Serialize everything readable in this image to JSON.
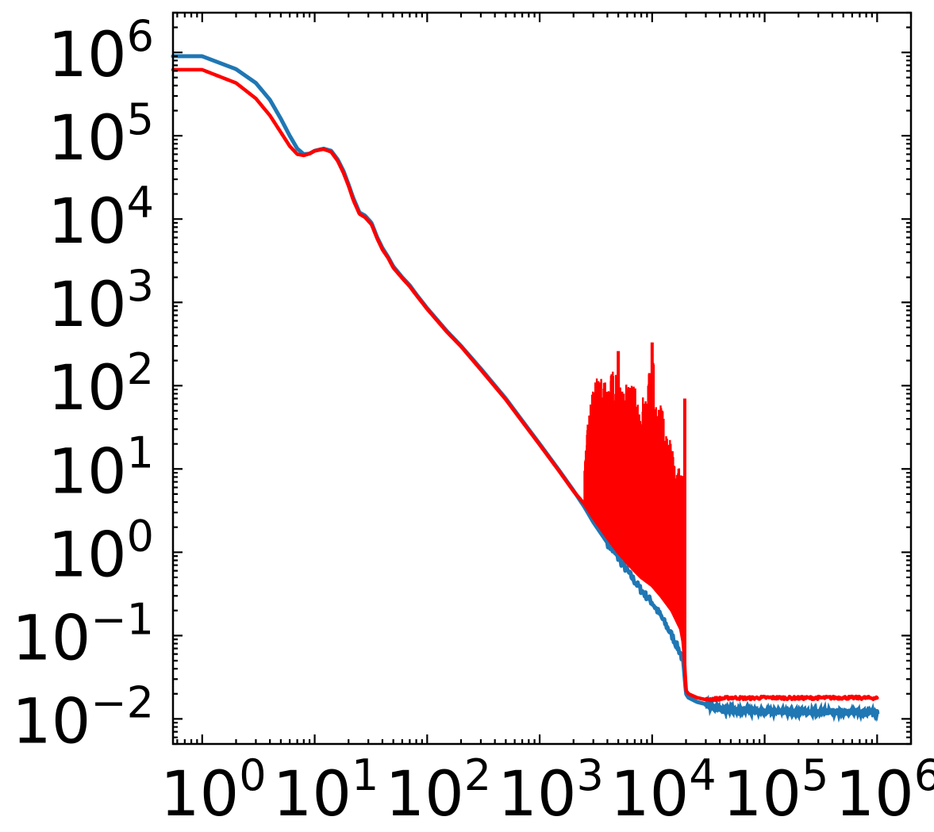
{
  "chart_data": {
    "type": "line",
    "title": "",
    "xlabel": "",
    "ylabel": "",
    "xscale": "log",
    "yscale": "log",
    "xlim": [
      0.55,
      2000000
    ],
    "ylim": [
      0.005,
      3000000
    ],
    "grid": false,
    "legend": "none",
    "x_ticks": [
      {
        "value": 1,
        "base": "10",
        "exp": "0"
      },
      {
        "value": 10,
        "base": "10",
        "exp": "1"
      },
      {
        "value": 100,
        "base": "10",
        "exp": "2"
      },
      {
        "value": 1000,
        "base": "10",
        "exp": "3"
      },
      {
        "value": 10000,
        "base": "10",
        "exp": "4"
      },
      {
        "value": 100000,
        "base": "10",
        "exp": "5"
      },
      {
        "value": 1000000,
        "base": "10",
        "exp": "6"
      }
    ],
    "y_ticks": [
      {
        "value": 0.01,
        "base": "10",
        "exp": "−2"
      },
      {
        "value": 0.1,
        "base": "10",
        "exp": "−1"
      },
      {
        "value": 1,
        "base": "10",
        "exp": "0"
      },
      {
        "value": 10,
        "base": "10",
        "exp": "1"
      },
      {
        "value": 100,
        "base": "10",
        "exp": "2"
      },
      {
        "value": 1000,
        "base": "10",
        "exp": "3"
      },
      {
        "value": 10000,
        "base": "10",
        "exp": "4"
      },
      {
        "value": 100000,
        "base": "10",
        "exp": "5"
      },
      {
        "value": 1000000,
        "base": "10",
        "exp": "6"
      }
    ],
    "series": [
      {
        "color": "#1f77b4",
        "x": [
          0.55,
          1,
          2,
          3,
          4,
          5,
          6,
          7,
          8,
          9,
          10,
          12,
          14,
          16,
          18,
          20,
          22,
          25,
          28,
          32,
          36,
          40,
          45,
          50,
          60,
          70,
          80,
          100,
          150,
          200,
          300,
          500,
          700,
          1000,
          1500,
          2000,
          2500,
          3000,
          4000,
          5000,
          6000,
          7000,
          8000,
          10000,
          12000,
          15000,
          18000,
          19000,
          20000,
          21000,
          25000,
          30000,
          40000,
          50000,
          70000,
          100000,
          200000,
          500000,
          1000000
        ],
        "y": [
          900000,
          900000,
          630000,
          430000,
          270000,
          160000,
          100000,
          70000,
          60000,
          61000,
          66000,
          70000,
          66000,
          52000,
          38000,
          26000,
          18000,
          12000,
          11000,
          9000,
          6000,
          4500,
          3500,
          2700,
          2000,
          1600,
          1250,
          850,
          450,
          300,
          160,
          70,
          38,
          20,
          9.5,
          5.5,
          3.5,
          2.3,
          1.3,
          0.85,
          0.6,
          0.45,
          0.35,
          0.25,
          0.17,
          0.1,
          0.06,
          0.045,
          0.02,
          0.018,
          0.016,
          0.015,
          0.013,
          0.0128,
          0.0125,
          0.0123,
          0.0122,
          0.0121,
          0.012
        ]
      },
      {
        "color": "#ff0000",
        "x": [
          0.55,
          1,
          2,
          3,
          4,
          5,
          6,
          7,
          8,
          9,
          10,
          12,
          14,
          16,
          18,
          20,
          22,
          25,
          28,
          32,
          36,
          40,
          45,
          50,
          60,
          70,
          80,
          100,
          150,
          200,
          300,
          500,
          700,
          1000,
          1500,
          2000,
          2500,
          3000,
          4000,
          5000,
          6000,
          7000,
          8000,
          10000,
          12000,
          15000,
          18000,
          19000,
          20000,
          21000,
          25000,
          30000,
          40000,
          50000,
          70000,
          100000,
          200000,
          500000,
          1000000
        ],
        "y": [
          620000,
          620000,
          430000,
          280000,
          175000,
          110000,
          75000,
          60000,
          58000,
          61000,
          66000,
          69000,
          64000,
          50000,
          36000,
          25000,
          17000,
          11500,
          10500,
          8600,
          5800,
          4300,
          3400,
          2600,
          1950,
          1550,
          1220,
          830,
          440,
          295,
          155,
          68,
          37,
          19.5,
          9.3,
          5.4,
          3.8,
          2.6,
          1.5,
          1.0,
          0.75,
          0.6,
          0.5,
          0.4,
          0.3,
          0.2,
          0.12,
          0.08,
          0.022,
          0.02,
          0.018,
          0.017,
          0.0175,
          0.018,
          0.0177,
          0.018,
          0.0178,
          0.018,
          0.0178
        ]
      }
    ],
    "oscillation": {
      "color": "#ff0000",
      "x_start": 2500,
      "x_end": 19000,
      "peak_envelope": {
        "x": [
          2500,
          2600,
          3000,
          3500,
          4000,
          4500,
          5000,
          5500,
          6000,
          7000,
          8000,
          9000,
          10000,
          11000,
          12000,
          13000,
          14000,
          15000,
          16000,
          17000,
          18000,
          19000
        ],
        "y": [
          10,
          30,
          100,
          160,
          100,
          180,
          120,
          100,
          110,
          100,
          80,
          100,
          320,
          70,
          60,
          40,
          30,
          18,
          14,
          12,
          11,
          10
        ]
      },
      "spikes": [
        {
          "x": 5000,
          "y": 260
        },
        {
          "x": 10000,
          "y": 330
        },
        {
          "x": 19500,
          "y": 70
        }
      ]
    }
  }
}
